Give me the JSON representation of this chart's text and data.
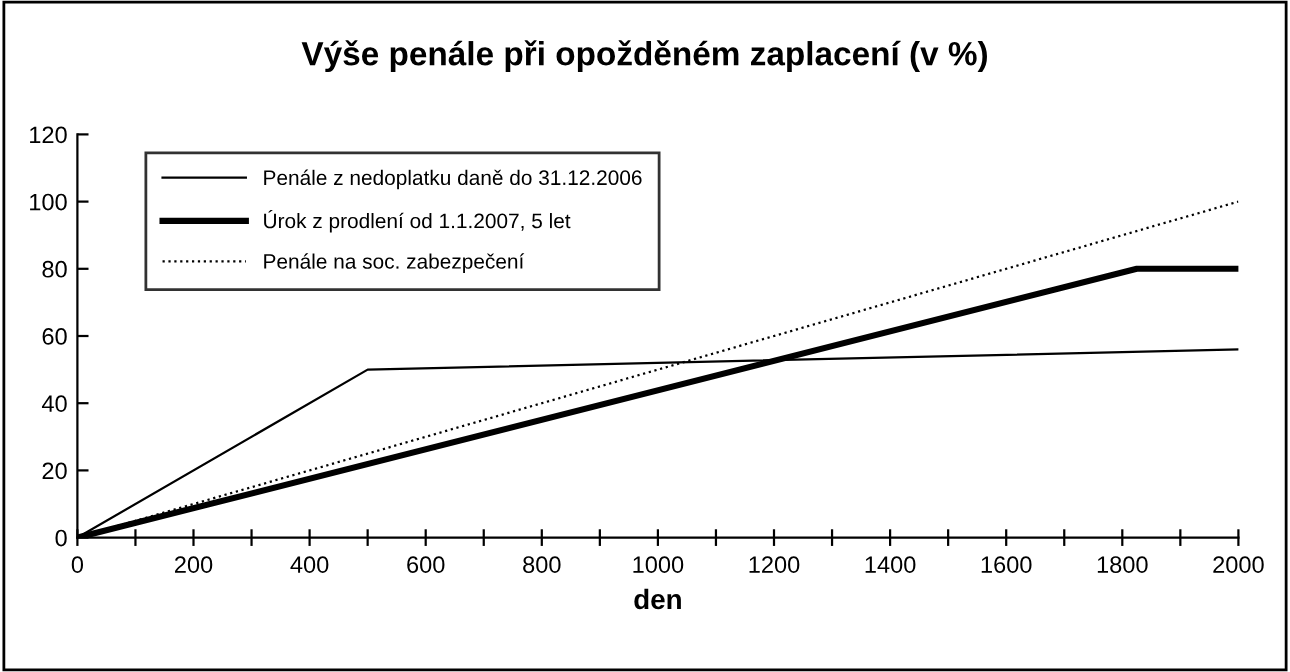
{
  "chart_data": {
    "type": "line",
    "title": "Výše penále při opožděném zaplacení (v %)",
    "xlabel": "den",
    "xlim": [
      0,
      2000
    ],
    "ylim": [
      0,
      120
    ],
    "xticks": [
      0,
      {
        "value": 100,
        "label": null
      },
      200,
      {
        "value": 300,
        "label": null
      },
      400,
      {
        "value": 500,
        "label": null
      },
      600,
      {
        "value": 700,
        "label": null
      },
      800,
      {
        "value": 900,
        "label": null
      },
      1000,
      {
        "value": 1100,
        "label": null
      },
      1200,
      {
        "value": 1300,
        "label": null
      },
      1400,
      {
        "value": 1500,
        "label": null
      },
      1600,
      {
        "value": 1700,
        "label": null
      },
      1800,
      {
        "value": 1900,
        "label": null
      },
      2000
    ],
    "yticks": [
      0,
      20,
      40,
      60,
      80,
      100,
      120
    ],
    "grid": false,
    "legend": "top left",
    "marker": "none",
    "series": [
      {
        "name": "Penále z nedoplatku daně do 31.12.2006",
        "color": "#000000",
        "x": [
          0,
          500,
          2000
        ],
        "values": [
          0,
          50,
          56
        ],
        "line_style": "solid"
      },
      {
        "name": "Úrok z prodlení od 1.1.2007, 5 let",
        "color": "#000000",
        "x": [
          0,
          1825,
          2000
        ],
        "values": [
          0,
          80,
          80
        ],
        "line_style": "solid"
      },
      {
        "name": "Penále na soc. zabezpečení",
        "color": "#000000",
        "x": [
          0,
          2000
        ],
        "values": [
          0,
          100
        ],
        "line_style": "dotted"
      }
    ]
  }
}
